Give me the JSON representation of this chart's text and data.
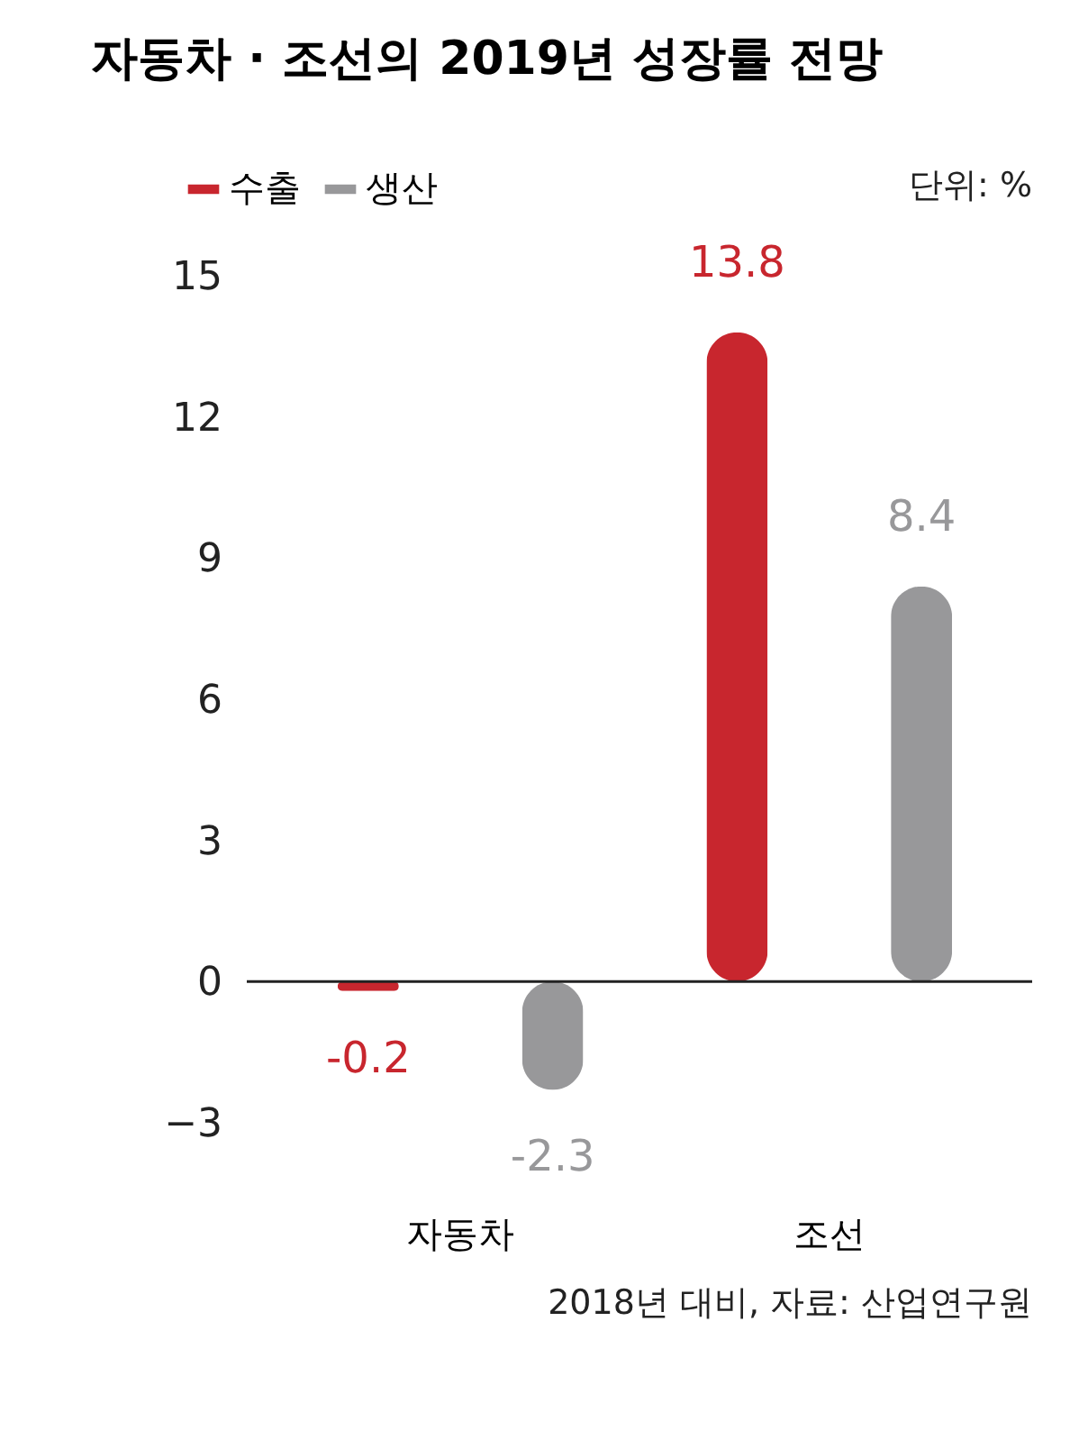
{
  "chart_data": {
    "type": "bar",
    "title": "자동차 · 조선의 2019년 성장률 전망",
    "categories": [
      "자동차",
      "조선"
    ],
    "series": [
      {
        "name": "수출",
        "color": "#c8262e",
        "values": [
          -0.2,
          13.8
        ]
      },
      {
        "name": "생산",
        "color": "#98989a",
        "values": [
          -2.3,
          8.4
        ]
      }
    ],
    "ylim": [
      -3,
      15
    ],
    "yticks": [
      -3,
      0,
      3,
      6,
      9,
      12,
      15
    ],
    "grid": false,
    "legend": "top left",
    "data_labels": true,
    "ref_lines": [
      {
        "axis": "y",
        "value": 0,
        "color": "#222222"
      }
    ],
    "annotations": [
      "단위: %",
      "2018년 대비, 자료:  산업연구원"
    ]
  }
}
